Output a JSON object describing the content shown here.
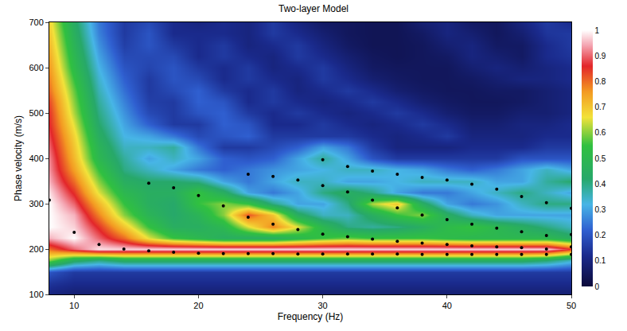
{
  "chart_data": {
    "type": "heatmap",
    "title": "Two-layer Model",
    "x_label": "Frequency (Hz)",
    "y_label": "Phase velocity (m/s)",
    "xlim": [
      8,
      50
    ],
    "xticks": [
      10,
      20,
      30,
      40,
      50
    ],
    "ylim": [
      100,
      700
    ],
    "yticks": [
      100,
      200,
      300,
      400,
      500,
      600,
      700
    ],
    "grid": false,
    "cells": {
      "x": [
        8,
        10,
        12,
        14,
        16,
        18,
        20,
        22,
        24,
        26,
        28,
        30,
        32,
        34,
        36,
        38,
        40,
        42,
        44,
        46,
        48,
        50
      ],
      "y": [
        100,
        125,
        150,
        175,
        200,
        225,
        250,
        275,
        300,
        325,
        350,
        375,
        400,
        425,
        450,
        475,
        500,
        525,
        550,
        575,
        600,
        625,
        650,
        675,
        700
      ],
      "z": [
        [
          0.1,
          0.08,
          0.08,
          0.08,
          0.08,
          0.08,
          0.08,
          0.08,
          0.08,
          0.08,
          0.08,
          0.08,
          0.08,
          0.08,
          0.08,
          0.08,
          0.08,
          0.08,
          0.08,
          0.08,
          0.08,
          0.08
        ],
        [
          0.14,
          0.12,
          0.12,
          0.12,
          0.12,
          0.12,
          0.12,
          0.12,
          0.12,
          0.12,
          0.12,
          0.12,
          0.12,
          0.12,
          0.12,
          0.12,
          0.12,
          0.12,
          0.12,
          0.12,
          0.12,
          0.12
        ],
        [
          0.2,
          0.15,
          0.15,
          0.15,
          0.15,
          0.15,
          0.15,
          0.15,
          0.15,
          0.15,
          0.15,
          0.15,
          0.15,
          0.15,
          0.15,
          0.15,
          0.15,
          0.15,
          0.15,
          0.15,
          0.15,
          0.15
        ],
        [
          0.6,
          0.45,
          0.4,
          0.45,
          0.45,
          0.45,
          0.45,
          0.45,
          0.45,
          0.45,
          0.45,
          0.45,
          0.45,
          0.45,
          0.45,
          0.45,
          0.45,
          0.45,
          0.45,
          0.45,
          0.42,
          0.35
        ],
        [
          0.8,
          0.9,
          0.98,
          0.97,
          0.97,
          0.97,
          0.97,
          0.97,
          0.97,
          0.97,
          0.97,
          0.97,
          0.97,
          0.97,
          0.97,
          0.97,
          0.97,
          0.97,
          0.97,
          0.97,
          0.97,
          0.85
        ],
        [
          0.95,
          1.0,
          0.9,
          0.8,
          0.65,
          0.55,
          0.5,
          0.45,
          0.45,
          0.45,
          0.5,
          0.55,
          0.58,
          0.55,
          0.55,
          0.55,
          0.52,
          0.5,
          0.5,
          0.5,
          0.5,
          0.45
        ],
        [
          1.0,
          0.97,
          0.85,
          0.7,
          0.55,
          0.45,
          0.45,
          0.5,
          0.65,
          0.78,
          0.65,
          0.5,
          0.4,
          0.38,
          0.4,
          0.45,
          0.52,
          0.55,
          0.5,
          0.45,
          0.4,
          0.35
        ],
        [
          1.0,
          0.95,
          0.78,
          0.6,
          0.48,
          0.42,
          0.48,
          0.6,
          0.82,
          0.7,
          0.45,
          0.35,
          0.35,
          0.45,
          0.55,
          0.6,
          0.45,
          0.35,
          0.3,
          0.3,
          0.3,
          0.3
        ],
        [
          1.0,
          0.9,
          0.72,
          0.55,
          0.45,
          0.42,
          0.55,
          0.6,
          0.55,
          0.4,
          0.3,
          0.3,
          0.4,
          0.62,
          0.7,
          0.45,
          0.3,
          0.25,
          0.28,
          0.35,
          0.4,
          0.4
        ],
        [
          0.98,
          0.85,
          0.65,
          0.5,
          0.45,
          0.45,
          0.55,
          0.45,
          0.3,
          0.25,
          0.3,
          0.4,
          0.45,
          0.4,
          0.3,
          0.25,
          0.25,
          0.3,
          0.35,
          0.4,
          0.35,
          0.3
        ],
        [
          0.95,
          0.8,
          0.6,
          0.45,
          0.42,
          0.42,
          0.4,
          0.3,
          0.25,
          0.3,
          0.35,
          0.35,
          0.3,
          0.3,
          0.32,
          0.35,
          0.35,
          0.35,
          0.3,
          0.3,
          0.38,
          0.42
        ],
        [
          0.93,
          0.75,
          0.55,
          0.4,
          0.35,
          0.3,
          0.25,
          0.22,
          0.25,
          0.28,
          0.3,
          0.32,
          0.35,
          0.35,
          0.32,
          0.3,
          0.25,
          0.22,
          0.25,
          0.3,
          0.35,
          0.3
        ],
        [
          0.92,
          0.72,
          0.5,
          0.38,
          0.3,
          0.35,
          0.3,
          0.22,
          0.2,
          0.22,
          0.3,
          0.38,
          0.3,
          0.2,
          0.15,
          0.15,
          0.15,
          0.15,
          0.15,
          0.2,
          0.2,
          0.2
        ],
        [
          0.9,
          0.7,
          0.48,
          0.35,
          0.35,
          0.38,
          0.25,
          0.15,
          0.15,
          0.18,
          0.22,
          0.3,
          0.25,
          0.15,
          0.1,
          0.1,
          0.1,
          0.12,
          0.12,
          0.12,
          0.15,
          0.15
        ],
        [
          0.88,
          0.68,
          0.45,
          0.32,
          0.3,
          0.25,
          0.18,
          0.2,
          0.22,
          0.15,
          0.15,
          0.15,
          0.15,
          0.12,
          0.1,
          0.12,
          0.15,
          0.1,
          0.1,
          0.1,
          0.12,
          0.12
        ],
        [
          0.86,
          0.65,
          0.42,
          0.3,
          0.22,
          0.15,
          0.15,
          0.22,
          0.2,
          0.12,
          0.12,
          0.15,
          0.12,
          0.1,
          0.12,
          0.15,
          0.12,
          0.08,
          0.08,
          0.1,
          0.1,
          0.12
        ],
        [
          0.85,
          0.62,
          0.4,
          0.28,
          0.18,
          0.15,
          0.2,
          0.22,
          0.15,
          0.12,
          0.15,
          0.12,
          0.1,
          0.12,
          0.15,
          0.12,
          0.08,
          0.06,
          0.06,
          0.08,
          0.08,
          0.1
        ],
        [
          0.83,
          0.6,
          0.38,
          0.26,
          0.16,
          0.15,
          0.22,
          0.2,
          0.12,
          0.15,
          0.12,
          0.1,
          0.12,
          0.15,
          0.12,
          0.08,
          0.06,
          0.05,
          0.05,
          0.06,
          0.08,
          0.1
        ],
        [
          0.8,
          0.58,
          0.36,
          0.24,
          0.15,
          0.18,
          0.22,
          0.15,
          0.12,
          0.15,
          0.1,
          0.12,
          0.15,
          0.12,
          0.08,
          0.06,
          0.05,
          0.05,
          0.06,
          0.06,
          0.08,
          0.1
        ],
        [
          0.78,
          0.55,
          0.34,
          0.22,
          0.15,
          0.2,
          0.18,
          0.12,
          0.15,
          0.12,
          0.1,
          0.15,
          0.12,
          0.08,
          0.06,
          0.05,
          0.05,
          0.06,
          0.08,
          0.1,
          0.1,
          0.12
        ],
        [
          0.76,
          0.52,
          0.32,
          0.2,
          0.17,
          0.2,
          0.15,
          0.12,
          0.15,
          0.1,
          0.12,
          0.15,
          0.1,
          0.06,
          0.05,
          0.05,
          0.05,
          0.08,
          0.1,
          0.08,
          0.1,
          0.12
        ],
        [
          0.74,
          0.5,
          0.3,
          0.18,
          0.18,
          0.18,
          0.12,
          0.15,
          0.12,
          0.1,
          0.15,
          0.12,
          0.08,
          0.05,
          0.04,
          0.05,
          0.06,
          0.1,
          0.08,
          0.06,
          0.12,
          0.14
        ],
        [
          0.72,
          0.48,
          0.28,
          0.16,
          0.2,
          0.15,
          0.12,
          0.15,
          0.1,
          0.12,
          0.15,
          0.1,
          0.06,
          0.04,
          0.04,
          0.05,
          0.08,
          0.1,
          0.06,
          0.06,
          0.12,
          0.15
        ],
        [
          0.7,
          0.46,
          0.26,
          0.15,
          0.2,
          0.12,
          0.12,
          0.12,
          0.1,
          0.15,
          0.12,
          0.08,
          0.05,
          0.04,
          0.04,
          0.06,
          0.1,
          0.08,
          0.05,
          0.08,
          0.14,
          0.15
        ],
        [
          0.68,
          0.44,
          0.25,
          0.15,
          0.18,
          0.12,
          0.1,
          0.12,
          0.1,
          0.15,
          0.1,
          0.06,
          0.05,
          0.04,
          0.04,
          0.08,
          0.1,
          0.06,
          0.05,
          0.1,
          0.15,
          0.12
        ]
      ]
    },
    "colorbar": {
      "range": [
        0,
        1
      ],
      "ticks": [
        0,
        0.1,
        0.2,
        0.3,
        0.4,
        0.5,
        0.6,
        0.7,
        0.8,
        0.9,
        1
      ]
    },
    "points": {
      "color": "#000000",
      "marker": "circle",
      "x": [
        8,
        10,
        12,
        14,
        16,
        18,
        20,
        22,
        24,
        26,
        28,
        30,
        32,
        34,
        36,
        38,
        40,
        42,
        44,
        46,
        48,
        50,
        16,
        18,
        20,
        22,
        24,
        26,
        28,
        30,
        32,
        34,
        36,
        38,
        40,
        42,
        44,
        46,
        48,
        50,
        24,
        26,
        28,
        30,
        32,
        34,
        36,
        38,
        40,
        42,
        44,
        46,
        48,
        50,
        30,
        32,
        34,
        36,
        38,
        40,
        42,
        44,
        46,
        48,
        50
      ],
      "y": [
        308,
        237,
        210,
        200,
        196,
        193,
        191,
        190,
        190,
        190,
        189,
        189,
        189,
        189,
        189,
        188,
        188,
        188,
        188,
        188,
        188,
        188,
        345,
        335,
        318,
        295,
        270,
        255,
        243,
        233,
        227,
        222,
        217,
        213,
        210,
        207,
        205,
        203,
        200,
        205,
        365,
        360,
        352,
        340,
        326,
        308,
        291,
        275,
        265,
        255,
        246,
        238,
        230,
        232,
        397,
        382,
        372,
        365,
        358,
        352,
        343,
        332,
        316,
        302,
        290
      ]
    }
  }
}
